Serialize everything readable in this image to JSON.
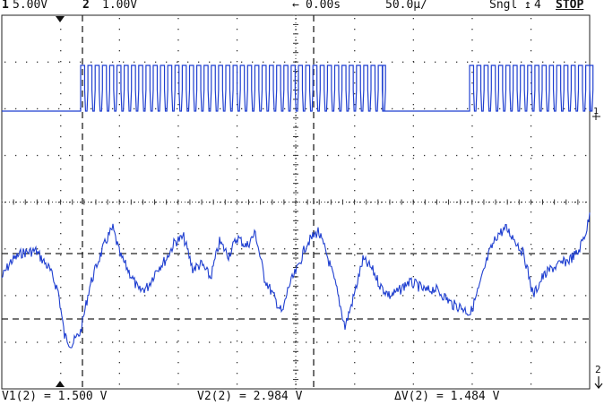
{
  "status": {
    "ch1_num": "1",
    "ch1_scale": "5.00V",
    "ch2_num": "2",
    "ch2_scale": "1.00V",
    "delay": "0.00s",
    "timebase": "50.0µ/",
    "mode": "Sngl",
    "trigger_src": "4",
    "run_state": "STOP"
  },
  "markers": {
    "ch1_ground": "1",
    "ch2_ground": "2"
  },
  "cursors": {
    "v1": "V1(2) = 1.500 V",
    "v2": "V2(2) = 2.984 V",
    "dv": "ΔV(2) = 1.484 V"
  },
  "colors": {
    "trace": "#1f3fd0",
    "grid": "#333333",
    "background": "#ffffff"
  }
}
